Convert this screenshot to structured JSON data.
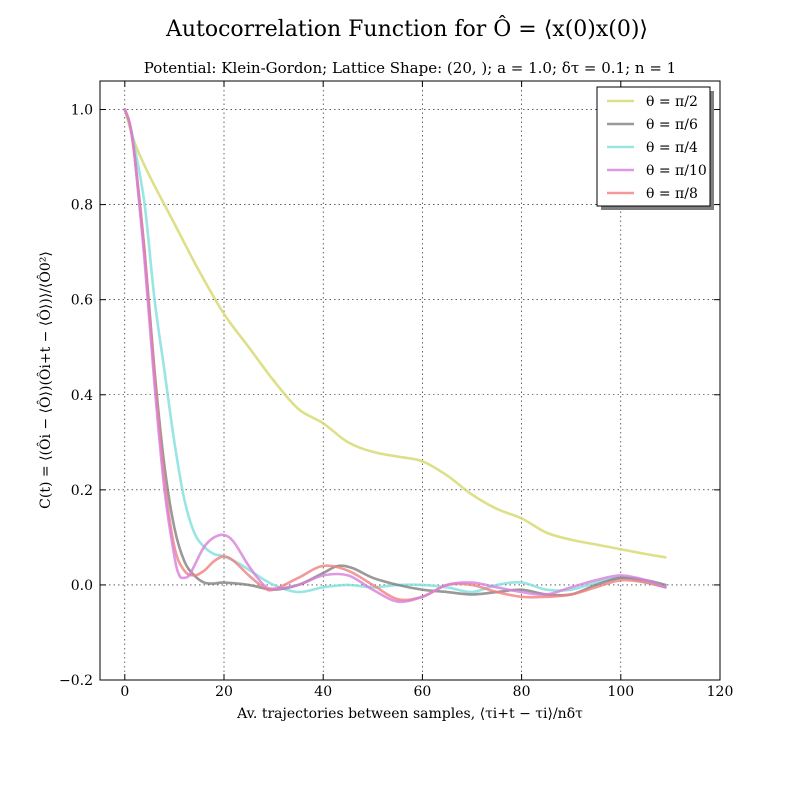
{
  "chart_data": {
    "type": "line",
    "title": "Autocorrelation Function for Ô = ⟨x(0)x(0)⟩",
    "subtitle": "Potential: Klein-Gordon; Lattice Shape: (20, ); a = 1.0; δτ = 0.1; n = 1",
    "xlabel": "Av. trajectories between samples, ⟨τi+t − τi⟩/nδτ",
    "ylabel": "C(t) = ⟨(Ôi − ⟨Ô⟩)(Ôi+t − ⟨Ô⟩)⟩/⟨Ô0²⟩",
    "xlim": [
      -5,
      120
    ],
    "ylim": [
      -0.2,
      1.06
    ],
    "xticks": [
      0,
      20,
      40,
      60,
      80,
      100,
      120
    ],
    "yticks": [
      -0.2,
      0.0,
      0.2,
      0.4,
      0.6,
      0.8,
      1.0
    ],
    "xtick_labels": [
      "0",
      "20",
      "40",
      "60",
      "80",
      "100",
      "120"
    ],
    "ytick_labels": [
      "−0.2",
      "0.0",
      "0.2",
      "0.4",
      "0.6",
      "0.8",
      "1.0"
    ],
    "grid": true,
    "legend_position": "top-right",
    "series": [
      {
        "name": "θ = π/2",
        "color": "#d4d86a",
        "x": [
          0,
          2,
          5,
          10,
          15,
          20,
          25,
          30,
          35,
          40,
          45,
          50,
          55,
          60,
          65,
          70,
          75,
          80,
          85,
          90,
          95,
          100,
          105,
          109
        ],
        "y": [
          1.0,
          0.93,
          0.86,
          0.76,
          0.66,
          0.57,
          0.5,
          0.43,
          0.37,
          0.34,
          0.3,
          0.28,
          0.27,
          0.26,
          0.23,
          0.19,
          0.16,
          0.14,
          0.11,
          0.095,
          0.085,
          0.075,
          0.065,
          0.058
        ]
      },
      {
        "name": "θ = π/6",
        "color": "#7f7f7f",
        "x": [
          0,
          1,
          2,
          4,
          6,
          8,
          10,
          12,
          14,
          16,
          18,
          20,
          25,
          30,
          35,
          40,
          43,
          46,
          50,
          55,
          60,
          65,
          70,
          75,
          80,
          85,
          90,
          95,
          100,
          105,
          109
        ],
        "y": [
          1.0,
          0.97,
          0.9,
          0.7,
          0.45,
          0.25,
          0.12,
          0.05,
          0.02,
          0.005,
          0.003,
          0.005,
          0.0,
          -0.01,
          0.0,
          0.025,
          0.04,
          0.035,
          0.015,
          0.0,
          -0.01,
          -0.015,
          -0.02,
          -0.015,
          -0.01,
          -0.02,
          -0.02,
          0.0,
          0.015,
          0.01,
          0.0
        ]
      },
      {
        "name": "θ = π/4",
        "color": "#7fdedd",
        "x": [
          0,
          1,
          2,
          4,
          6,
          8,
          10,
          12,
          14,
          16,
          18,
          20,
          23,
          26,
          30,
          35,
          40,
          45,
          50,
          55,
          60,
          65,
          70,
          75,
          80,
          85,
          90,
          95,
          100,
          105,
          109
        ],
        "y": [
          1.0,
          0.97,
          0.92,
          0.8,
          0.6,
          0.45,
          0.3,
          0.18,
          0.11,
          0.08,
          0.065,
          0.06,
          0.045,
          0.025,
          0.0,
          -0.015,
          -0.005,
          0.0,
          -0.005,
          0.0,
          0.0,
          -0.005,
          -0.015,
          0.0,
          0.005,
          -0.01,
          -0.01,
          0.005,
          0.015,
          0.005,
          -0.005
        ]
      },
      {
        "name": "θ = π/10",
        "color": "#d77fdb",
        "x": [
          0,
          1,
          2,
          4,
          6,
          8,
          10,
          11,
          12,
          13,
          14,
          16,
          18,
          20,
          22,
          25,
          28,
          30,
          35,
          40,
          45,
          50,
          55,
          60,
          65,
          70,
          75,
          80,
          85,
          90,
          95,
          100,
          105,
          109
        ],
        "y": [
          1.0,
          0.97,
          0.9,
          0.68,
          0.42,
          0.2,
          0.06,
          0.02,
          0.015,
          0.02,
          0.04,
          0.08,
          0.1,
          0.105,
          0.09,
          0.04,
          0.0,
          -0.008,
          0.0,
          0.02,
          0.02,
          -0.01,
          -0.035,
          -0.025,
          0.0,
          0.005,
          -0.005,
          -0.015,
          -0.02,
          -0.005,
          0.01,
          0.02,
          0.01,
          -0.005
        ]
      },
      {
        "name": "θ = π/8",
        "color": "#f0807f",
        "x": [
          0,
          1,
          2,
          4,
          6,
          8,
          10,
          12,
          14,
          16,
          18,
          20,
          22,
          25,
          28,
          30,
          35,
          40,
          45,
          50,
          55,
          60,
          65,
          70,
          75,
          80,
          85,
          90,
          95,
          100,
          105,
          109
        ],
        "y": [
          1.0,
          0.97,
          0.9,
          0.7,
          0.44,
          0.22,
          0.08,
          0.03,
          0.02,
          0.03,
          0.05,
          0.06,
          0.05,
          0.02,
          -0.005,
          -0.01,
          0.015,
          0.04,
          0.03,
          0.0,
          -0.03,
          -0.025,
          0.0,
          0.0,
          -0.015,
          -0.025,
          -0.025,
          -0.02,
          -0.005,
          0.01,
          0.005,
          -0.005
        ]
      }
    ]
  }
}
